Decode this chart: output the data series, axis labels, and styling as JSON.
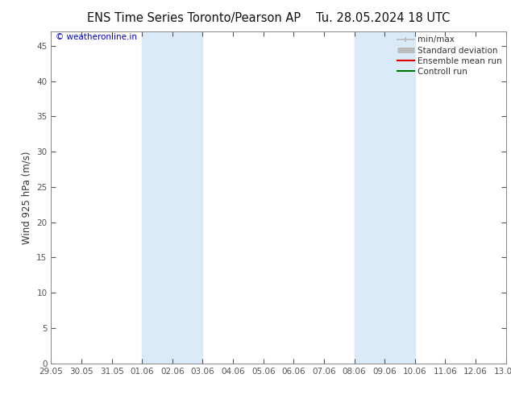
{
  "title_left": "ENS Time Series Toronto/Pearson AP",
  "title_right": "Tu. 28.05.2024 18 UTC",
  "ylabel": "Wind 925 hPa (m/s)",
  "watermark": "© weatheronline.in",
  "watermark_color": "#0000cc",
  "xlabel_ticks": [
    "29.05",
    "30.05",
    "31.05",
    "01.06",
    "02.06",
    "03.06",
    "04.06",
    "05.06",
    "06.06",
    "07.06",
    "08.06",
    "09.06",
    "10.06",
    "11.06",
    "12.06",
    "13.06"
  ],
  "ylim": [
    0,
    47
  ],
  "yticks": [
    0,
    5,
    10,
    15,
    20,
    25,
    30,
    35,
    40,
    45
  ],
  "xlim": [
    0,
    15
  ],
  "background_color": "#ffffff",
  "plot_bg_color": "#ffffff",
  "tick_color": "#555555",
  "shaded_bands": [
    {
      "x_start": 3,
      "x_end": 5,
      "color": "#daeaf8"
    },
    {
      "x_start": 10,
      "x_end": 12,
      "color": "#daeaf8"
    }
  ],
  "legend_entries": [
    {
      "label": "min/max",
      "color": "#bbbbbb",
      "lw": 1.2
    },
    {
      "label": "Standard deviation",
      "color": "#bbbbbb",
      "lw": 5
    },
    {
      "label": "Ensemble mean run",
      "color": "#dd0000",
      "lw": 1.5
    },
    {
      "label": "Controll run",
      "color": "#007700",
      "lw": 1.5
    }
  ],
  "title_fontsize": 10.5,
  "axis_fontsize": 8.5,
  "tick_fontsize": 7.5,
  "legend_fontsize": 7.5
}
